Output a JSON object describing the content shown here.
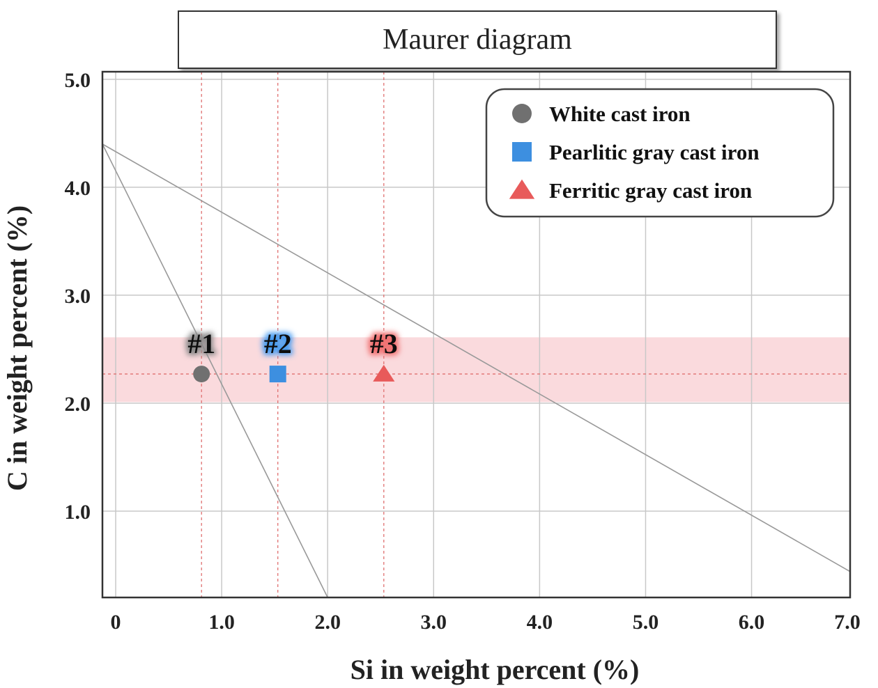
{
  "chart_data": {
    "type": "scatter",
    "title": "Maurer diagram",
    "xlabel": "Si in weight percent (%)",
    "ylabel": "C in weight percent (%)",
    "xlim": [
      -0.125,
      6.93
    ],
    "ylim": [
      0.2,
      5.07
    ],
    "x_ticks": [
      0,
      1.0,
      2.0,
      3.0,
      4.0,
      5.0,
      6.0,
      7.0
    ],
    "x_tick_labels": [
      "0",
      "1.0",
      "2.0",
      "3.0",
      "4.0",
      "5.0",
      "6.0",
      "7.0"
    ],
    "y_ticks": [
      1.0,
      2.0,
      3.0,
      4.0,
      5.0
    ],
    "y_tick_labels": [
      "1.0",
      "2.0",
      "3.0",
      "4.0",
      "5.0"
    ],
    "grid": true,
    "legend_position": "top-right",
    "series": [
      {
        "name": "White cast iron",
        "marker": "circle",
        "color": "#707070",
        "label": "#1",
        "label_glow": "#888888",
        "x": 0.81,
        "y": 2.27
      },
      {
        "name": "Pearlitic gray cast iron",
        "marker": "square",
        "color": "#3d8fe0",
        "label": "#2",
        "label_glow": "#4a9cf0",
        "x": 1.53,
        "y": 2.27
      },
      {
        "name": "Ferritic gray cast iron",
        "marker": "triangle",
        "color": "#e85a5a",
        "label": "#3",
        "label_glow": "#f07070",
        "x": 2.53,
        "y": 2.27
      }
    ],
    "boundary_lines": [
      {
        "points": [
          [
            -0.125,
            4.4
          ],
          [
            2.0,
            0.2
          ]
        ],
        "color": "#999999"
      },
      {
        "points": [
          [
            -0.125,
            4.4
          ],
          [
            6.93,
            0.44
          ]
        ],
        "color": "#999999"
      }
    ],
    "band": {
      "y_range": [
        2.01,
        2.61
      ],
      "color": "#fadadd"
    },
    "reference_lines": {
      "horizontal_y": 2.27,
      "vertical_x": [
        0.81,
        1.53,
        2.53
      ],
      "color": "#e07070",
      "style": "dashed"
    }
  }
}
